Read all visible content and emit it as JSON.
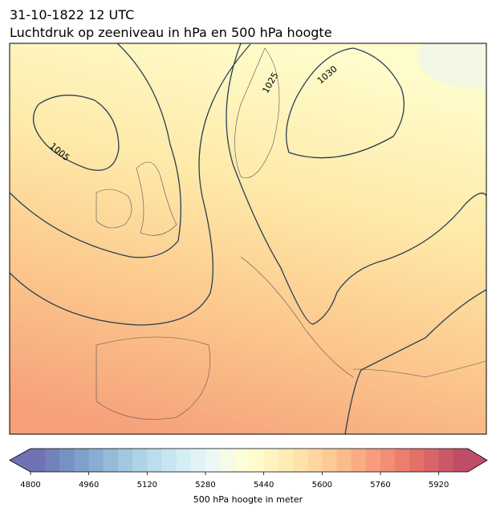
{
  "header": {
    "title_line1": "31-10-1822 12 UTC",
    "title_line2": "Luchtdruk op zeeniveau in hPa en 500 hPa hoogte"
  },
  "contour_labels": [
    "1005",
    "1025",
    "1030"
  ],
  "colorbar": {
    "label": "500 hPa hoogte in meter",
    "levels": [
      4800,
      4840,
      4880,
      4920,
      4960,
      5000,
      5040,
      5080,
      5120,
      5160,
      5200,
      5240,
      5280,
      5320,
      5360,
      5400,
      5440,
      5480,
      5520,
      5560,
      5600,
      5640,
      5680,
      5720,
      5760,
      5800,
      5840,
      5880,
      5920,
      5960,
      6000
    ],
    "ticks": [
      4800,
      4960,
      5120,
      5280,
      5440,
      5600,
      5760,
      5920
    ]
  }
}
